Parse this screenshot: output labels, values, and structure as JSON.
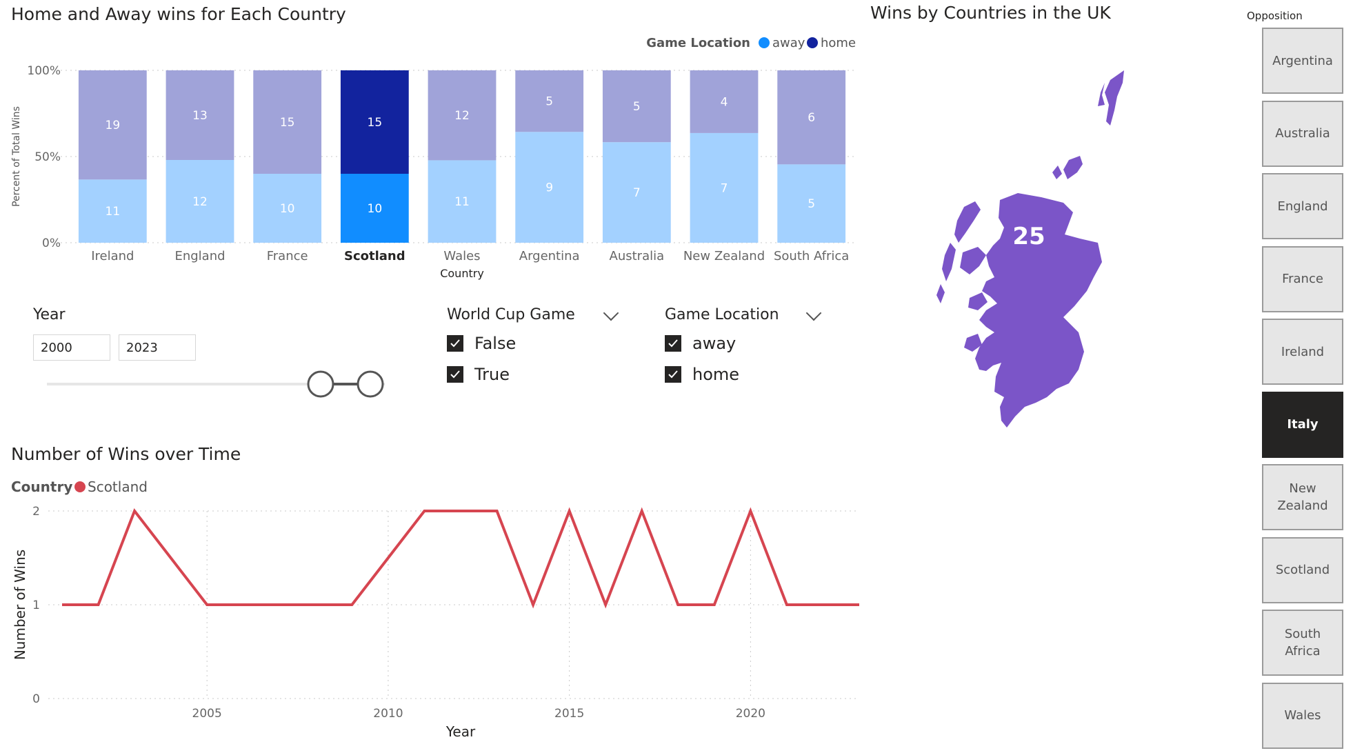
{
  "bar_chart": {
    "title": "Home and Away wins for Each Country",
    "legend_title": "Game Location",
    "legend_items": [
      {
        "label": "away",
        "color": "#118dff"
      },
      {
        "label": "home",
        "color": "#12239e"
      }
    ]
  },
  "map": {
    "title": "Wins by Countries in the UK",
    "value": "25",
    "fill_color": "#7b55c8"
  },
  "year_slicer": {
    "title": "Year",
    "from": "2000",
    "to": "2023"
  },
  "world_cup_slicer": {
    "title": "World Cup Game",
    "options": [
      {
        "label": "False",
        "checked": true
      },
      {
        "label": "True",
        "checked": true
      }
    ]
  },
  "location_slicer": {
    "title": "Game Location",
    "options": [
      {
        "label": "away",
        "checked": true
      },
      {
        "label": "home",
        "checked": true
      }
    ]
  },
  "line_chart": {
    "title": "Number of Wins over Time",
    "legend_title": "Country",
    "legend_item": "Scotland",
    "line_color": "#d64550"
  },
  "opposition": {
    "title": "Opposition",
    "items": [
      "Argentina",
      "Australia",
      "England",
      "France",
      "Ireland",
      "Italy",
      "New Zealand",
      "Scotland",
      "South Africa",
      "Wales"
    ],
    "selected": "Italy"
  },
  "chart_data": [
    {
      "type": "bar",
      "stacked": "percent",
      "title": "Home and Away wins for Each Country",
      "xlabel": "Country",
      "ylabel": "Percent of Total Wins",
      "categories": [
        "Ireland",
        "England",
        "France",
        "Scotland",
        "Wales",
        "Argentina",
        "Australia",
        "New Zealand",
        "South Africa"
      ],
      "highlighted": "Scotland",
      "series": [
        {
          "name": "away",
          "values": [
            11,
            12,
            10,
            10,
            11,
            9,
            7,
            7,
            5
          ]
        },
        {
          "name": "home",
          "values": [
            19,
            13,
            15,
            15,
            12,
            5,
            5,
            4,
            6
          ]
        }
      ],
      "yticks": [
        "0%",
        "50%",
        "100%"
      ],
      "ylim": [
        0,
        100
      ],
      "legend": "top-right",
      "grid": true
    },
    {
      "type": "line",
      "title": "Number of Wins over Time",
      "xlabel": "Year",
      "ylabel": "Number of Wins",
      "x": [
        2001,
        2002,
        2003,
        2004,
        2005,
        2006,
        2007,
        2008,
        2009,
        2010,
        2011,
        2012,
        2013,
        2014,
        2015,
        2016,
        2017,
        2018,
        2019,
        2020,
        2021,
        2022,
        2023
      ],
      "series": [
        {
          "name": "Scotland",
          "values": [
            1,
            1,
            2,
            1.5,
            1,
            1,
            1,
            1,
            1,
            1.5,
            2,
            2,
            2,
            1,
            2,
            1,
            2,
            1,
            1,
            2,
            1,
            1,
            1
          ]
        }
      ],
      "xticks": [
        2005,
        2010,
        2015,
        2020
      ],
      "yticks": [
        0,
        1,
        2
      ],
      "xlim": [
        2001,
        2023
      ],
      "ylim": [
        0,
        2
      ],
      "legend": "top-left",
      "grid": true
    }
  ]
}
